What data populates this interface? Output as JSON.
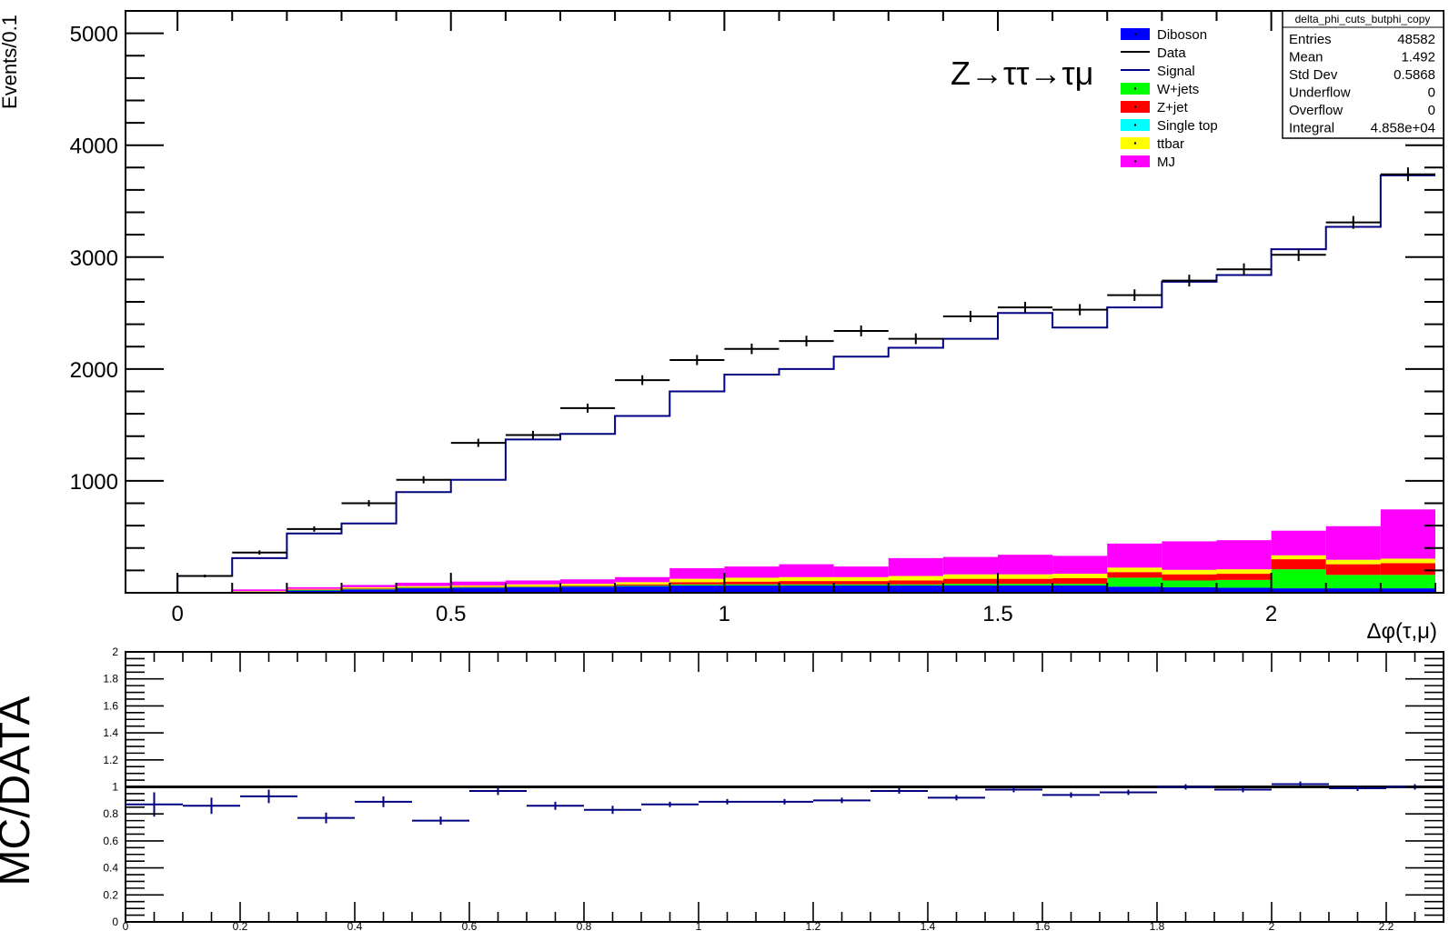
{
  "chart_data": [
    {
      "type": "stacked-histogram",
      "ylabel": "Events/0.1",
      "xlabel": "Δφ(τ,μ)",
      "annotation": "Z→ττ→τμ",
      "xlim": [
        -0.095,
        2.315
      ],
      "ylim": [
        0,
        5200
      ],
      "x_ticks": [
        "0",
        "0.5",
        "1",
        "1.5",
        "2"
      ],
      "x_tick_values": [
        0,
        0.5,
        1,
        1.5,
        2
      ],
      "y_ticks": [
        "1000",
        "2000",
        "3000",
        "4000",
        "5000"
      ],
      "y_tick_values": [
        1000,
        2000,
        3000,
        4000,
        5000
      ],
      "bin_edges": [
        0,
        0.1,
        0.2,
        0.3,
        0.4,
        0.5,
        0.6,
        0.7,
        0.8,
        0.9,
        1.0,
        1.1,
        1.2,
        1.3,
        1.4,
        1.5,
        1.6,
        1.7,
        1.8,
        1.9,
        2.0,
        2.1,
        2.2,
        2.3
      ],
      "legend": [
        {
          "label": "Diboson",
          "style": "fill",
          "color": "#0000ff"
        },
        {
          "label": "Data",
          "style": "line",
          "color": "#000000"
        },
        {
          "label": "Signal",
          "style": "line",
          "color": "#000080"
        },
        {
          "label": "W+jets",
          "style": "fill",
          "color": "#00ff00"
        },
        {
          "label": "Z+jet",
          "style": "fill",
          "color": "#ff0000"
        },
        {
          "label": "Single top",
          "style": "fill",
          "color": "#00ffff"
        },
        {
          "label": "ttbar",
          "style": "fill",
          "color": "#ffff00"
        },
        {
          "label": "MJ",
          "style": "fill",
          "color": "#ff00ff"
        }
      ],
      "stack": [
        {
          "name": "Diboson",
          "color": "#0000ff",
          "values": [
            0,
            10,
            20,
            30,
            40,
            45,
            50,
            55,
            60,
            65,
            65,
            65,
            65,
            65,
            65,
            65,
            65,
            55,
            50,
            45,
            40,
            40,
            40
          ]
        },
        {
          "name": "W+jets",
          "color": "#00ff00",
          "values": [
            0,
            0,
            5,
            5,
            5,
            5,
            5,
            5,
            5,
            10,
            10,
            10,
            10,
            10,
            15,
            15,
            15,
            80,
            60,
            70,
            170,
            120,
            120
          ]
        },
        {
          "name": "Z+jet",
          "color": "#ff0000",
          "values": [
            0,
            0,
            5,
            5,
            5,
            5,
            5,
            5,
            10,
            20,
            25,
            30,
            30,
            35,
            45,
            45,
            50,
            50,
            55,
            55,
            90,
            95,
            105
          ]
        },
        {
          "name": "Single top",
          "color": "#00ffff",
          "values": [
            0,
            0,
            0,
            0,
            0,
            0,
            0,
            0,
            0,
            0,
            0,
            0,
            0,
            0,
            0,
            0,
            0,
            0,
            0,
            0,
            0,
            0,
            0
          ]
        },
        {
          "name": "ttbar",
          "color": "#ffff00",
          "values": [
            0,
            5,
            5,
            10,
            10,
            10,
            15,
            15,
            20,
            30,
            35,
            35,
            35,
            40,
            40,
            40,
            40,
            40,
            40,
            40,
            35,
            40,
            40
          ]
        },
        {
          "name": "MJ",
          "color": "#ff00ff",
          "values": [
            0,
            15,
            15,
            20,
            30,
            35,
            35,
            40,
            45,
            95,
            100,
            115,
            95,
            160,
            155,
            175,
            160,
            215,
            255,
            260,
            220,
            300,
            440
          ]
        }
      ],
      "signal": {
        "name": "Signal",
        "color": "#000080",
        "values": [
          150,
          310,
          530,
          620,
          900,
          1010,
          1370,
          1420,
          1580,
          1800,
          1950,
          2000,
          2110,
          2190,
          2270,
          2500,
          2370,
          2550,
          2780,
          2840,
          3070,
          3270,
          3730
        ]
      },
      "data": {
        "name": "Data",
        "color": "#000000",
        "values": [
          150,
          360,
          570,
          800,
          1010,
          1340,
          1410,
          1650,
          1900,
          2080,
          2180,
          2250,
          2340,
          2270,
          2470,
          2550,
          2530,
          2660,
          2790,
          2890,
          3020,
          3310,
          3740
        ]
      },
      "stats": {
        "title": "delta_phi_cuts_butphi_copy",
        "rows": [
          {
            "label": "Entries",
            "value": "48582"
          },
          {
            "label": "Mean",
            "value": "1.492"
          },
          {
            "label": "Std Dev",
            "value": "0.5868"
          },
          {
            "label": "Underflow",
            "value": "0"
          },
          {
            "label": "Overflow",
            "value": "0"
          },
          {
            "label": "Integral",
            "value": "4.858e+04"
          }
        ]
      }
    },
    {
      "type": "ratio",
      "ylabel": "MC/DATA",
      "xlim": [
        0,
        2.3
      ],
      "ylim": [
        0,
        2
      ],
      "reference_line": 1,
      "x_ticks": [
        "0",
        "0.2",
        "0.4",
        "0.6",
        "0.8",
        "1",
        "1.2",
        "1.4",
        "1.6",
        "1.8",
        "2",
        "2.2"
      ],
      "x_tick_values": [
        0,
        0.2,
        0.4,
        0.6,
        0.8,
        1.0,
        1.2,
        1.4,
        1.6,
        1.8,
        2.0,
        2.2
      ],
      "y_ticks": [
        "0",
        "0.2",
        "0.4",
        "0.6",
        "0.8",
        "1",
        "1.2",
        "1.4",
        "1.6",
        "1.8",
        "2"
      ],
      "y_tick_values": [
        0,
        0.2,
        0.4,
        0.6,
        0.8,
        1.0,
        1.2,
        1.4,
        1.6,
        1.8,
        2.0
      ],
      "color": "#000080",
      "points": [
        {
          "x": 0.05,
          "y": 0.87,
          "err": 0.09
        },
        {
          "x": 0.15,
          "y": 0.86,
          "err": 0.06
        },
        {
          "x": 0.25,
          "y": 0.93,
          "err": 0.05
        },
        {
          "x": 0.35,
          "y": 0.77,
          "err": 0.04
        },
        {
          "x": 0.45,
          "y": 0.89,
          "err": 0.04
        },
        {
          "x": 0.55,
          "y": 0.75,
          "err": 0.03
        },
        {
          "x": 0.65,
          "y": 0.97,
          "err": 0.03
        },
        {
          "x": 0.75,
          "y": 0.86,
          "err": 0.03
        },
        {
          "x": 0.85,
          "y": 0.83,
          "err": 0.03
        },
        {
          "x": 0.95,
          "y": 0.87,
          "err": 0.02
        },
        {
          "x": 1.05,
          "y": 0.89,
          "err": 0.02
        },
        {
          "x": 1.15,
          "y": 0.89,
          "err": 0.02
        },
        {
          "x": 1.25,
          "y": 0.9,
          "err": 0.02
        },
        {
          "x": 1.35,
          "y": 0.97,
          "err": 0.02
        },
        {
          "x": 1.45,
          "y": 0.92,
          "err": 0.02
        },
        {
          "x": 1.55,
          "y": 0.98,
          "err": 0.02
        },
        {
          "x": 1.65,
          "y": 0.94,
          "err": 0.02
        },
        {
          "x": 1.75,
          "y": 0.96,
          "err": 0.02
        },
        {
          "x": 1.85,
          "y": 1.0,
          "err": 0.02
        },
        {
          "x": 1.95,
          "y": 0.98,
          "err": 0.02
        },
        {
          "x": 2.05,
          "y": 1.02,
          "err": 0.02
        },
        {
          "x": 2.15,
          "y": 0.99,
          "err": 0.02
        },
        {
          "x": 2.25,
          "y": 1.0,
          "err": 0.02
        }
      ]
    }
  ]
}
